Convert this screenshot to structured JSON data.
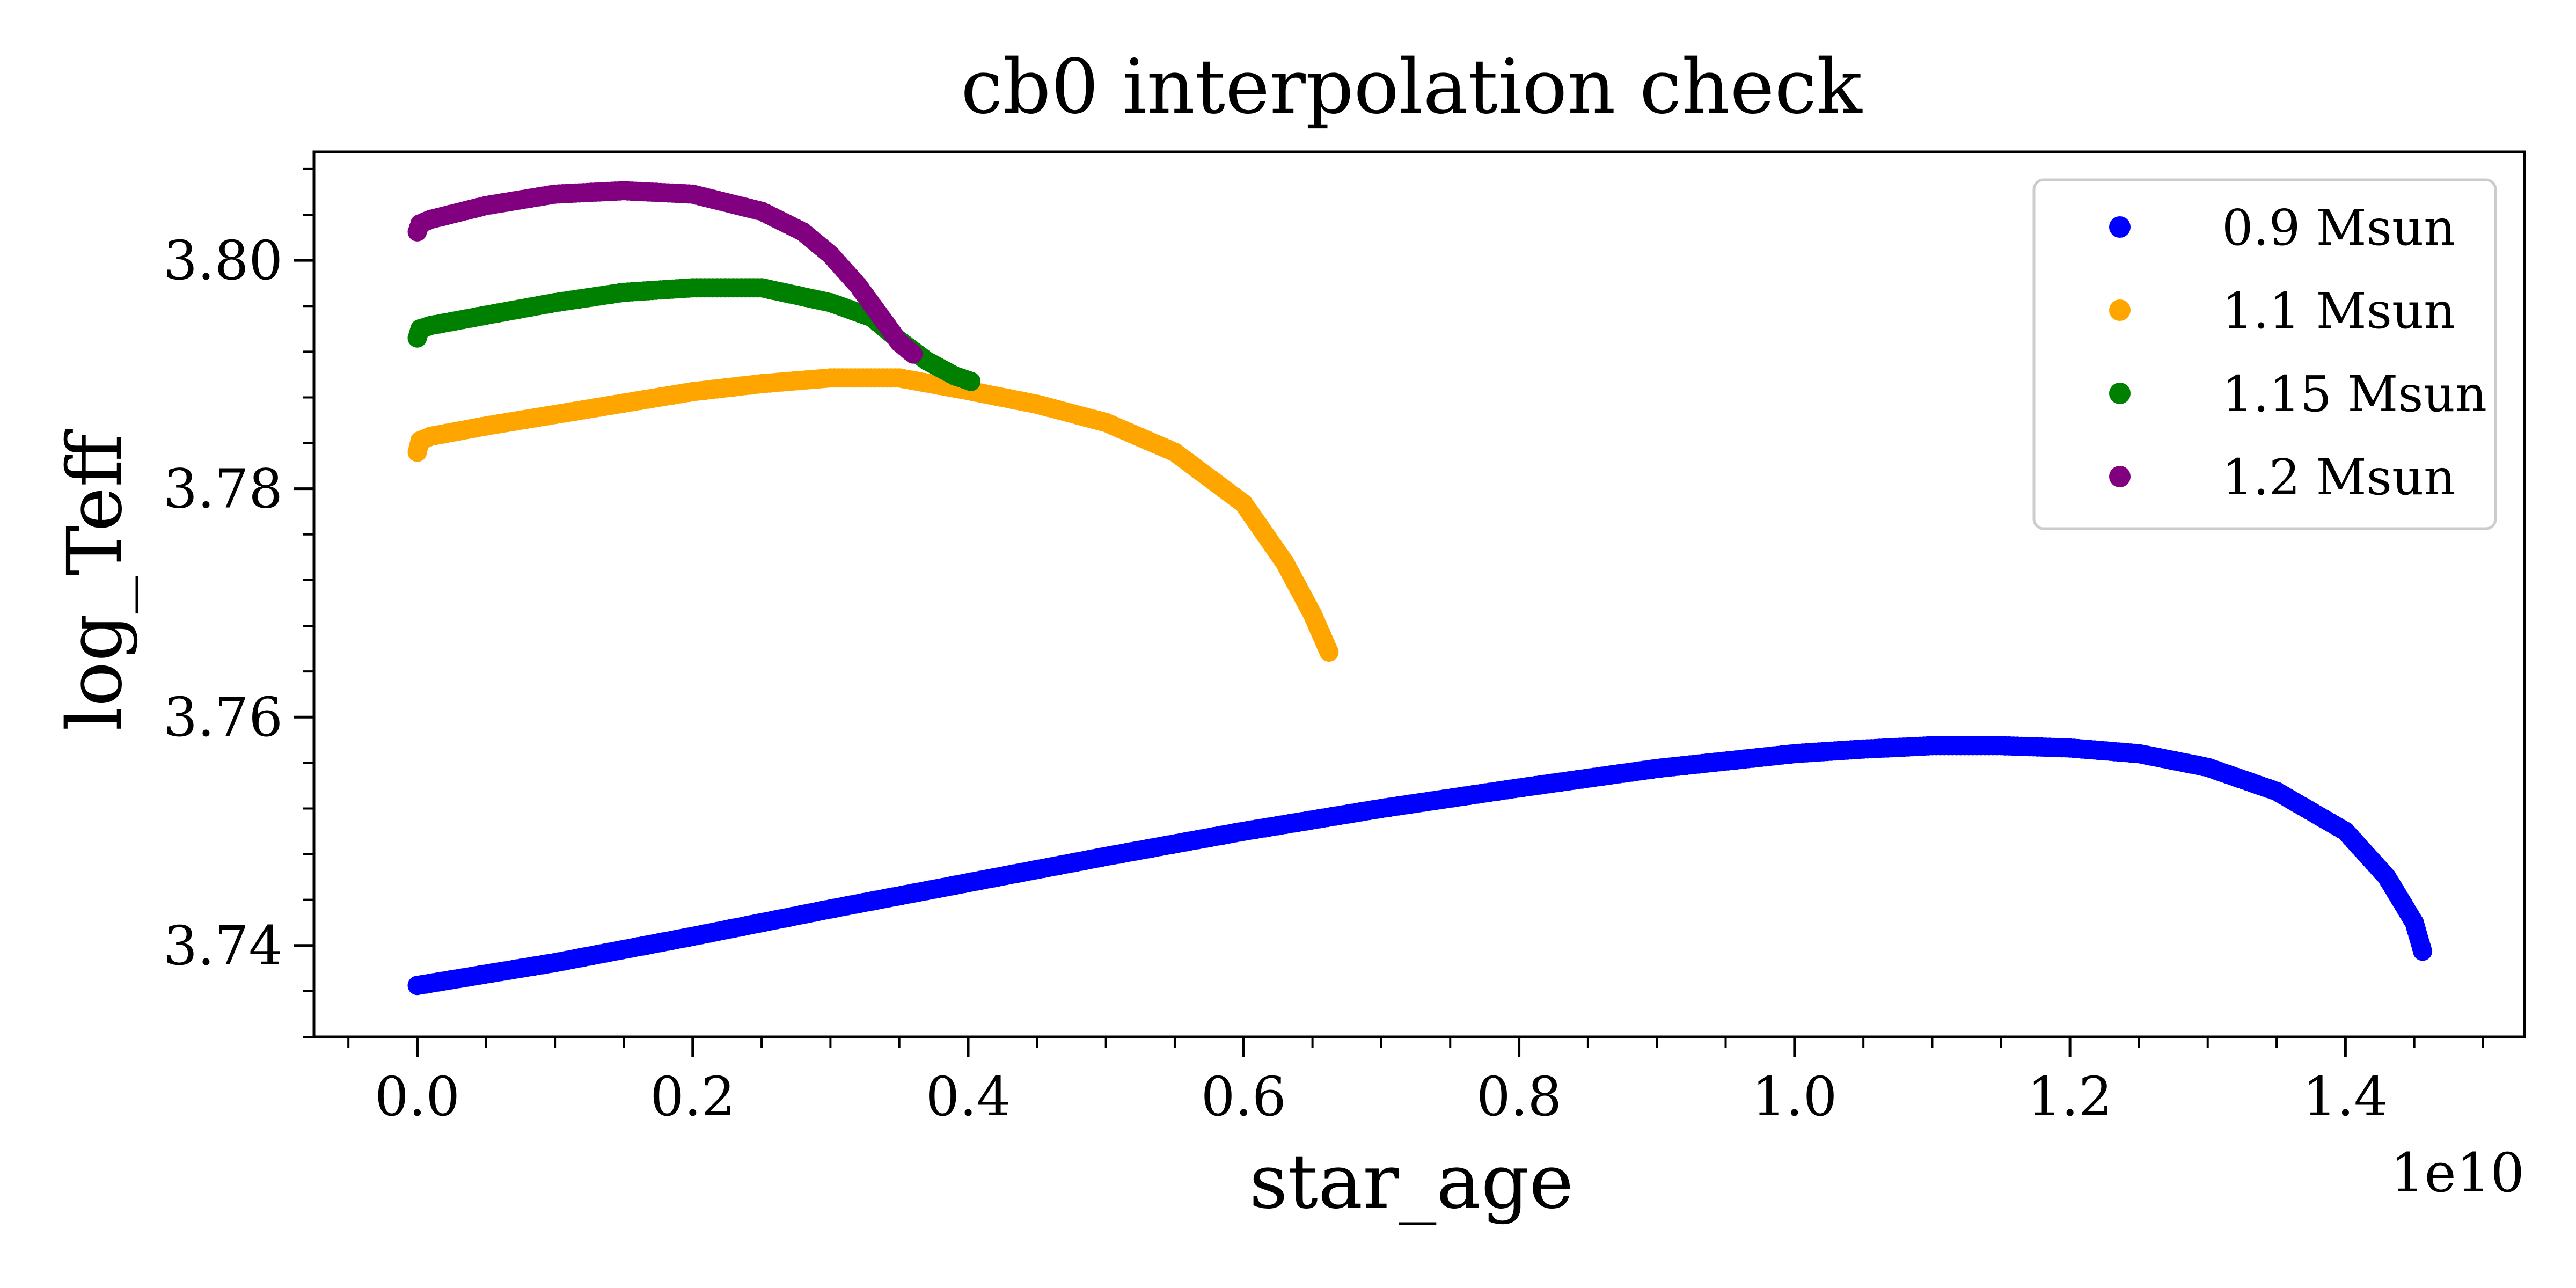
{
  "chart_data": {
    "type": "scatter",
    "title": "cb0 interpolation check",
    "xlabel": "star_age",
    "ylabel": "log_Teff",
    "x_offset_label": "1e10",
    "x_scale_factor": 10000000000,
    "xlim": [
      -0.075,
      1.53
    ],
    "ylim": [
      3.732,
      3.8095
    ],
    "xticks": [
      0.0,
      0.2,
      0.4,
      0.6,
      0.8,
      1.0,
      1.2,
      1.4
    ],
    "xtick_labels": [
      "0.0",
      "0.2",
      "0.4",
      "0.6",
      "0.8",
      "1.0",
      "1.2",
      "1.4"
    ],
    "yticks": [
      3.74,
      3.76,
      3.78,
      3.8
    ],
    "ytick_labels": [
      "3.74",
      "3.76",
      "3.78",
      "3.80"
    ],
    "legend_position": "top-right",
    "grid": false,
    "series": [
      {
        "name": "0.9 Msun",
        "color": "#0000ff",
        "points": [
          [
            0.0,
            3.7365
          ],
          [
            0.1,
            3.7385
          ],
          [
            0.2,
            3.7408
          ],
          [
            0.3,
            3.7432
          ],
          [
            0.4,
            3.7455
          ],
          [
            0.5,
            3.7478
          ],
          [
            0.6,
            3.75
          ],
          [
            0.7,
            3.752
          ],
          [
            0.8,
            3.7538
          ],
          [
            0.9,
            3.7555
          ],
          [
            1.0,
            3.7568
          ],
          [
            1.05,
            3.7572
          ],
          [
            1.1,
            3.7575
          ],
          [
            1.15,
            3.7575
          ],
          [
            1.2,
            3.7573
          ],
          [
            1.25,
            3.7568
          ],
          [
            1.3,
            3.7556
          ],
          [
            1.35,
            3.7535
          ],
          [
            1.4,
            3.75
          ],
          [
            1.43,
            3.746
          ],
          [
            1.45,
            3.742
          ],
          [
            1.456,
            3.7395
          ]
        ]
      },
      {
        "name": "1.1 Msun",
        "color": "#ffa500",
        "points": [
          [
            0.0,
            3.7832
          ],
          [
            0.002,
            3.7842
          ],
          [
            0.01,
            3.7846
          ],
          [
            0.05,
            3.7855
          ],
          [
            0.1,
            3.7865
          ],
          [
            0.15,
            3.7875
          ],
          [
            0.2,
            3.7885
          ],
          [
            0.25,
            3.7892
          ],
          [
            0.3,
            3.7897
          ],
          [
            0.35,
            3.7897
          ],
          [
            0.4,
            3.7886
          ],
          [
            0.45,
            3.7874
          ],
          [
            0.5,
            3.7858
          ],
          [
            0.55,
            3.7832
          ],
          [
            0.6,
            3.7787
          ],
          [
            0.63,
            3.7735
          ],
          [
            0.65,
            3.769
          ],
          [
            0.662,
            3.7657
          ]
        ]
      },
      {
        "name": "1.15 Msun",
        "color": "#008000",
        "points": [
          [
            0.0,
            3.7932
          ],
          [
            0.002,
            3.794
          ],
          [
            0.01,
            3.7943
          ],
          [
            0.05,
            3.7952
          ],
          [
            0.1,
            3.7963
          ],
          [
            0.15,
            3.7972
          ],
          [
            0.2,
            3.7976
          ],
          [
            0.25,
            3.7976
          ],
          [
            0.3,
            3.7963
          ],
          [
            0.33,
            3.795
          ],
          [
            0.35,
            3.793
          ],
          [
            0.37,
            3.7912
          ],
          [
            0.39,
            3.7899
          ],
          [
            0.402,
            3.7894
          ]
        ]
      },
      {
        "name": "1.2 Msun",
        "color": "#800080",
        "points": [
          [
            0.0,
            3.8025
          ],
          [
            0.002,
            3.8032
          ],
          [
            0.01,
            3.8036
          ],
          [
            0.05,
            3.8048
          ],
          [
            0.1,
            3.8058
          ],
          [
            0.15,
            3.8061
          ],
          [
            0.2,
            3.8058
          ],
          [
            0.25,
            3.8043
          ],
          [
            0.28,
            3.8025
          ],
          [
            0.3,
            3.8005
          ],
          [
            0.32,
            3.7978
          ],
          [
            0.34,
            3.7945
          ],
          [
            0.35,
            3.7928
          ],
          [
            0.36,
            3.7918
          ]
        ]
      }
    ]
  }
}
